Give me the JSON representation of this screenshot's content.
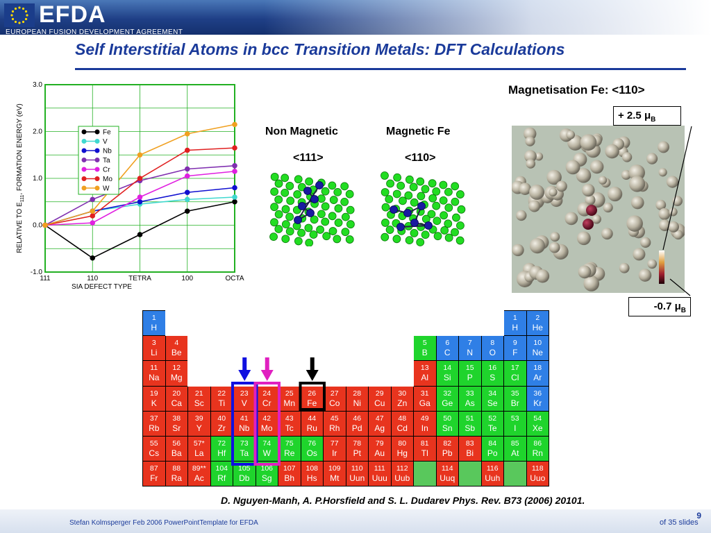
{
  "header": {
    "logo": "EFDA",
    "subtitle": "EUROPEAN FUSION DEVELOPMENT AGREEMENT"
  },
  "title": "Self Interstitial Atoms in bcc Transition Metals: DFT Calculations",
  "chart_data": {
    "type": "line",
    "title": "",
    "xlabel": "SIA DEFECT TYPE",
    "ylabel": "RELATIVE TO E111 FORMATION ENERGY (eV)",
    "ylabel_main": "RELATIVE TO E",
    "ylabel_sub": "111",
    "ylabel_tail": ", FORMATION ENERGY (eV)",
    "ylim": [
      -1.0,
      3.0
    ],
    "yticks": [
      "-1.0",
      "0.0",
      "1.0",
      "2.0",
      "3.0"
    ],
    "categories": [
      "111",
      "110",
      "TETRA",
      "100",
      "OCTA"
    ],
    "grid": true,
    "legend_position": "top-left",
    "series": [
      {
        "name": "Fe",
        "color": "#000000",
        "values": [
          0.0,
          -0.7,
          -0.2,
          0.3,
          0.5
        ]
      },
      {
        "name": "V",
        "color": "#40d8d0",
        "values": [
          0.0,
          0.3,
          0.45,
          0.55,
          0.6
        ]
      },
      {
        "name": "Nb",
        "color": "#1010d0",
        "values": [
          0.0,
          0.3,
          0.5,
          0.7,
          0.8
        ]
      },
      {
        "name": "Ta",
        "color": "#8030b0",
        "values": [
          0.0,
          0.55,
          0.95,
          1.2,
          1.27
        ]
      },
      {
        "name": "Cr",
        "color": "#e020e0",
        "values": [
          0.0,
          0.05,
          0.6,
          1.05,
          1.15
        ]
      },
      {
        "name": "Mo",
        "color": "#e02020",
        "values": [
          0.0,
          0.2,
          1.0,
          1.6,
          1.65
        ]
      },
      {
        "name": "W",
        "color": "#f0a020",
        "values": [
          0.0,
          0.3,
          1.5,
          1.95,
          2.15
        ]
      }
    ]
  },
  "structures": {
    "nonmag_title": "Non Magnetic",
    "nonmag_dir": "<111>",
    "mag_title": "Magnetic Fe",
    "mag_dir": "<110>"
  },
  "magnetisation": {
    "title": "Magnetisation Fe: <110>",
    "max_label": "+ 2.5 μ",
    "min_label": "-0.7 μ",
    "unit_sub": "B"
  },
  "periodic_table": [
    {
      "n": "1",
      "s": "H",
      "r": 0,
      "c": 0,
      "k": "blue"
    },
    {
      "n": "1",
      "s": "H",
      "r": 0,
      "c": 16,
      "k": "blue"
    },
    {
      "n": "2",
      "s": "He",
      "r": 0,
      "c": 17,
      "k": "blue"
    },
    {
      "n": "3",
      "s": "Li",
      "r": 1,
      "c": 0,
      "k": "red"
    },
    {
      "n": "4",
      "s": "Be",
      "r": 1,
      "c": 1,
      "k": "red"
    },
    {
      "n": "5",
      "s": "B",
      "r": 1,
      "c": 12,
      "k": "green"
    },
    {
      "n": "6",
      "s": "C",
      "r": 1,
      "c": 13,
      "k": "blue"
    },
    {
      "n": "7",
      "s": "N",
      "r": 1,
      "c": 14,
      "k": "blue"
    },
    {
      "n": "8",
      "s": "O",
      "r": 1,
      "c": 15,
      "k": "blue"
    },
    {
      "n": "9",
      "s": "F",
      "r": 1,
      "c": 16,
      "k": "blue"
    },
    {
      "n": "10",
      "s": "Ne",
      "r": 1,
      "c": 17,
      "k": "blue"
    },
    {
      "n": "11",
      "s": "Na",
      "r": 2,
      "c": 0,
      "k": "red"
    },
    {
      "n": "12",
      "s": "Mg",
      "r": 2,
      "c": 1,
      "k": "red"
    },
    {
      "n": "13",
      "s": "Al",
      "r": 2,
      "c": 12,
      "k": "red"
    },
    {
      "n": "14",
      "s": "Si",
      "r": 2,
      "c": 13,
      "k": "green"
    },
    {
      "n": "15",
      "s": "P",
      "r": 2,
      "c": 14,
      "k": "green"
    },
    {
      "n": "16",
      "s": "S",
      "r": 2,
      "c": 15,
      "k": "green"
    },
    {
      "n": "17",
      "s": "Cl",
      "r": 2,
      "c": 16,
      "k": "green"
    },
    {
      "n": "18",
      "s": "Ar",
      "r": 2,
      "c": 17,
      "k": "blue"
    },
    {
      "n": "19",
      "s": "K",
      "r": 3,
      "c": 0,
      "k": "red"
    },
    {
      "n": "20",
      "s": "Ca",
      "r": 3,
      "c": 1,
      "k": "red"
    },
    {
      "n": "21",
      "s": "Sc",
      "r": 3,
      "c": 2,
      "k": "red"
    },
    {
      "n": "22",
      "s": "Ti",
      "r": 3,
      "c": 3,
      "k": "red"
    },
    {
      "n": "23",
      "s": "V",
      "r": 3,
      "c": 4,
      "k": "red"
    },
    {
      "n": "24",
      "s": "Cr",
      "r": 3,
      "c": 5,
      "k": "red"
    },
    {
      "n": "25",
      "s": "Mn",
      "r": 3,
      "c": 6,
      "k": "red"
    },
    {
      "n": "26",
      "s": "Fe",
      "r": 3,
      "c": 7,
      "k": "red"
    },
    {
      "n": "27",
      "s": "Co",
      "r": 3,
      "c": 8,
      "k": "red"
    },
    {
      "n": "28",
      "s": "Ni",
      "r": 3,
      "c": 9,
      "k": "red"
    },
    {
      "n": "29",
      "s": "Cu",
      "r": 3,
      "c": 10,
      "k": "red"
    },
    {
      "n": "30",
      "s": "Zn",
      "r": 3,
      "c": 11,
      "k": "red"
    },
    {
      "n": "31",
      "s": "Ga",
      "r": 3,
      "c": 12,
      "k": "red"
    },
    {
      "n": "32",
      "s": "Ge",
      "r": 3,
      "c": 13,
      "k": "green"
    },
    {
      "n": "33",
      "s": "As",
      "r": 3,
      "c": 14,
      "k": "green"
    },
    {
      "n": "34",
      "s": "Se",
      "r": 3,
      "c": 15,
      "k": "green"
    },
    {
      "n": "35",
      "s": "Br",
      "r": 3,
      "c": 16,
      "k": "green"
    },
    {
      "n": "36",
      "s": "Kr",
      "r": 3,
      "c": 17,
      "k": "blue"
    },
    {
      "n": "37",
      "s": "Rb",
      "r": 4,
      "c": 0,
      "k": "red"
    },
    {
      "n": "38",
      "s": "Sr",
      "r": 4,
      "c": 1,
      "k": "red"
    },
    {
      "n": "39",
      "s": "Y",
      "r": 4,
      "c": 2,
      "k": "red"
    },
    {
      "n": "40",
      "s": "Zr",
      "r": 4,
      "c": 3,
      "k": "red"
    },
    {
      "n": "41",
      "s": "Nb",
      "r": 4,
      "c": 4,
      "k": "red"
    },
    {
      "n": "42",
      "s": "Mo",
      "r": 4,
      "c": 5,
      "k": "red"
    },
    {
      "n": "43",
      "s": "Tc",
      "r": 4,
      "c": 6,
      "k": "red"
    },
    {
      "n": "44",
      "s": "Ru",
      "r": 4,
      "c": 7,
      "k": "red"
    },
    {
      "n": "45",
      "s": "Rh",
      "r": 4,
      "c": 8,
      "k": "red"
    },
    {
      "n": "46",
      "s": "Pd",
      "r": 4,
      "c": 9,
      "k": "red"
    },
    {
      "n": "47",
      "s": "Ag",
      "r": 4,
      "c": 10,
      "k": "red"
    },
    {
      "n": "48",
      "s": "Cd",
      "r": 4,
      "c": 11,
      "k": "red"
    },
    {
      "n": "49",
      "s": "In",
      "r": 4,
      "c": 12,
      "k": "red"
    },
    {
      "n": "50",
      "s": "Sn",
      "r": 4,
      "c": 13,
      "k": "green"
    },
    {
      "n": "51",
      "s": "Sb",
      "r": 4,
      "c": 14,
      "k": "green"
    },
    {
      "n": "52",
      "s": "Te",
      "r": 4,
      "c": 15,
      "k": "green"
    },
    {
      "n": "53",
      "s": "I",
      "r": 4,
      "c": 16,
      "k": "green"
    },
    {
      "n": "54",
      "s": "Xe",
      "r": 4,
      "c": 17,
      "k": "green"
    },
    {
      "n": "55",
      "s": "Cs",
      "r": 5,
      "c": 0,
      "k": "red"
    },
    {
      "n": "56",
      "s": "Ba",
      "r": 5,
      "c": 1,
      "k": "red"
    },
    {
      "n": "57*",
      "s": "La",
      "r": 5,
      "c": 2,
      "k": "red"
    },
    {
      "n": "72",
      "s": "Hf",
      "r": 5,
      "c": 3,
      "k": "green"
    },
    {
      "n": "73",
      "s": "Ta",
      "r": 5,
      "c": 4,
      "k": "green"
    },
    {
      "n": "74",
      "s": "W",
      "r": 5,
      "c": 5,
      "k": "green"
    },
    {
      "n": "75",
      "s": "Re",
      "r": 5,
      "c": 6,
      "k": "green"
    },
    {
      "n": "76",
      "s": "Os",
      "r": 5,
      "c": 7,
      "k": "green"
    },
    {
      "n": "77",
      "s": "Ir",
      "r": 5,
      "c": 8,
      "k": "red"
    },
    {
      "n": "78",
      "s": "Pt",
      "r": 5,
      "c": 9,
      "k": "red"
    },
    {
      "n": "79",
      "s": "Au",
      "r": 5,
      "c": 10,
      "k": "red"
    },
    {
      "n": "80",
      "s": "Hg",
      "r": 5,
      "c": 11,
      "k": "red"
    },
    {
      "n": "81",
      "s": "Tl",
      "r": 5,
      "c": 12,
      "k": "red"
    },
    {
      "n": "82",
      "s": "Pb",
      "r": 5,
      "c": 13,
      "k": "red"
    },
    {
      "n": "83",
      "s": "Bi",
      "r": 5,
      "c": 14,
      "k": "red"
    },
    {
      "n": "84",
      "s": "Po",
      "r": 5,
      "c": 15,
      "k": "green"
    },
    {
      "n": "85",
      "s": "At",
      "r": 5,
      "c": 16,
      "k": "green"
    },
    {
      "n": "86",
      "s": "Rn",
      "r": 5,
      "c": 17,
      "k": "green"
    },
    {
      "n": "87",
      "s": "Fr",
      "r": 6,
      "c": 0,
      "k": "red"
    },
    {
      "n": "88",
      "s": "Ra",
      "r": 6,
      "c": 1,
      "k": "red"
    },
    {
      "n": "89**",
      "s": "Ac",
      "r": 6,
      "c": 2,
      "k": "red"
    },
    {
      "n": "104",
      "s": "Rf",
      "r": 6,
      "c": 3,
      "k": "green"
    },
    {
      "n": "105",
      "s": "Db",
      "r": 6,
      "c": 4,
      "k": "green"
    },
    {
      "n": "106",
      "s": "Sg",
      "r": 6,
      "c": 5,
      "k": "green"
    },
    {
      "n": "107",
      "s": "Bh",
      "r": 6,
      "c": 6,
      "k": "red"
    },
    {
      "n": "108",
      "s": "Hs",
      "r": 6,
      "c": 7,
      "k": "red"
    },
    {
      "n": "109",
      "s": "Mt",
      "r": 6,
      "c": 8,
      "k": "red"
    },
    {
      "n": "110",
      "s": "Uun",
      "r": 6,
      "c": 9,
      "k": "red"
    },
    {
      "n": "111",
      "s": "Uuu",
      "r": 6,
      "c": 10,
      "k": "red"
    },
    {
      "n": "112",
      "s": "Uub",
      "r": 6,
      "c": 11,
      "k": "red"
    },
    {
      "n": "",
      "s": "",
      "r": 6,
      "c": 12,
      "k": "hatch"
    },
    {
      "n": "114",
      "s": "Uuq",
      "r": 6,
      "c": 13,
      "k": "red"
    },
    {
      "n": "",
      "s": "",
      "r": 6,
      "c": 14,
      "k": "hatch"
    },
    {
      "n": "116",
      "s": "Uuh",
      "r": 6,
      "c": 15,
      "k": "red"
    },
    {
      "n": "",
      "s": "",
      "r": 6,
      "c": 16,
      "k": "hatch"
    },
    {
      "n": "118",
      "s": "Uuo",
      "r": 6,
      "c": 17,
      "k": "red"
    }
  ],
  "highlights": [
    {
      "name": "group-5-highlight",
      "col": 4,
      "color": "#1010e0"
    },
    {
      "name": "group-6-highlight",
      "col": 5,
      "color": "#e020c0"
    },
    {
      "name": "iron-highlight",
      "col": 7,
      "color": "#000000"
    }
  ],
  "reference": "D. Nguyen-Manh, A. P.Horsfield and S. L. Dudarev Phys. Rev. B73 (2006) 20101.",
  "footer": {
    "author": "Stefan Kolmsperger Feb 2006 PowerPointTemplate for EFDA",
    "slide_number": "9",
    "slide_total": "of  35 slides"
  }
}
